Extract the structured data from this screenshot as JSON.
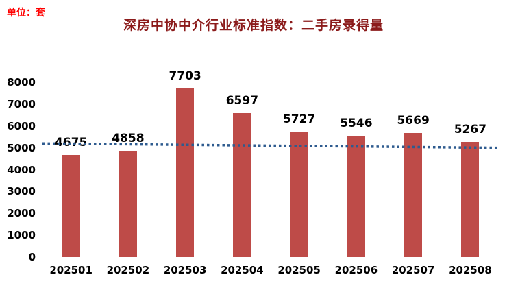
{
  "chart_data": {
    "type": "bar",
    "title": "深房中协中介行业标准指数：二手房录得量",
    "unit_label": "单位：套",
    "categories": [
      "202501",
      "202502",
      "202503",
      "202504",
      "202505",
      "202506",
      "202507",
      "202508"
    ],
    "values": [
      4675,
      4858,
      7703,
      6597,
      5727,
      5546,
      5669,
      5267
    ],
    "xlabel": "",
    "ylabel": "",
    "ylim": [
      0,
      8000
    ],
    "y_ticks": [
      0,
      1000,
      2000,
      3000,
      4000,
      5000,
      6000,
      7000,
      8000
    ],
    "grid": false,
    "legend": "none",
    "trendline": {
      "start_value": 5200,
      "end_value": 5000,
      "style": "dotted"
    },
    "colors": {
      "bar": "#be4b48",
      "trend": "#2e5b8f",
      "title": "#8b1a1a",
      "unit": "#ff0000",
      "label": "#000000"
    }
  }
}
